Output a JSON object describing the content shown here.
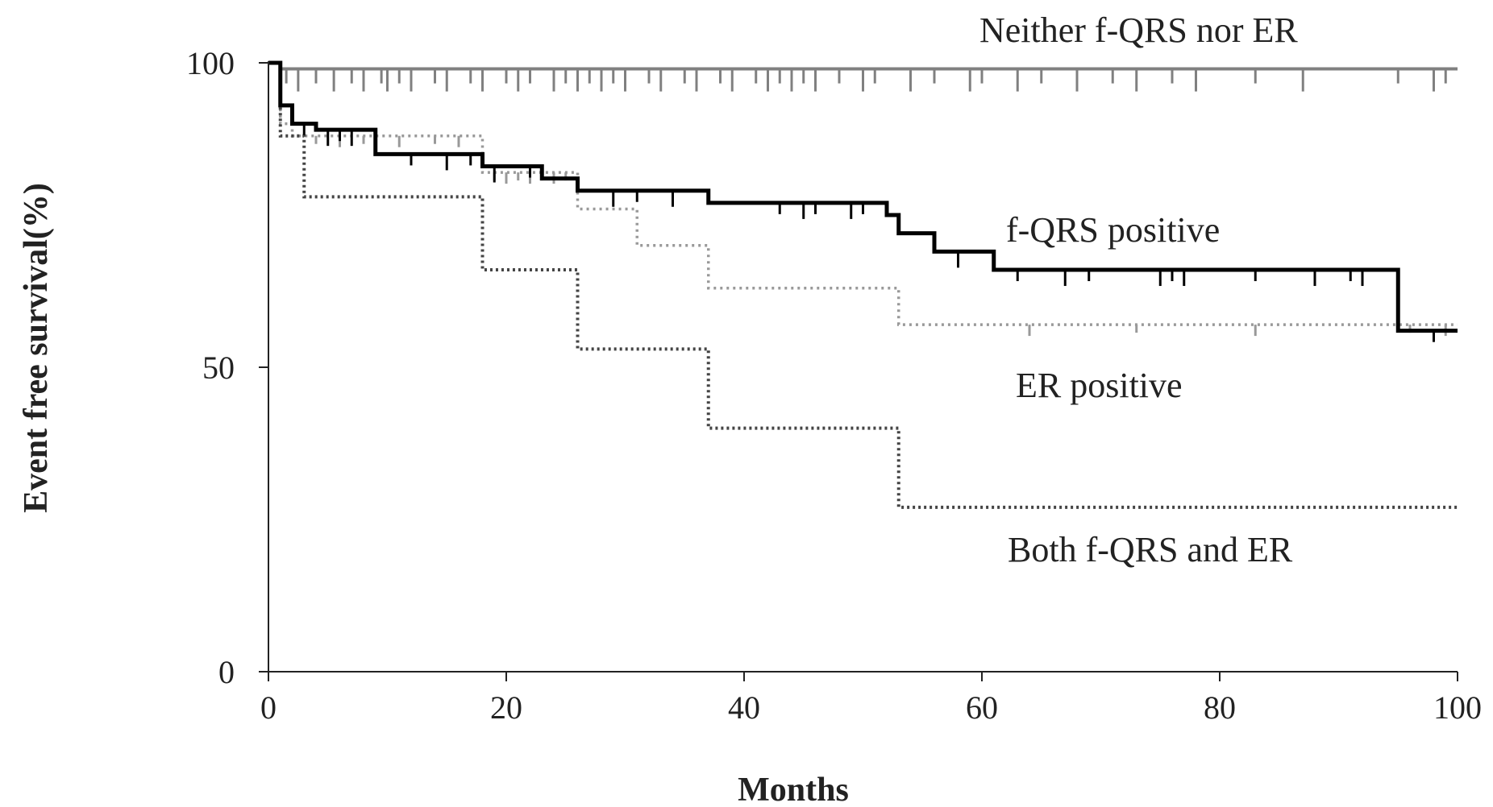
{
  "chart_data": {
    "type": "line",
    "subtype": "kaplan-meier step curves",
    "xlabel": "Months",
    "ylabel": "Event free survival(%)",
    "xlim": [
      0,
      100
    ],
    "ylim": [
      0,
      100
    ],
    "xticks": [
      0,
      20,
      40,
      60,
      80,
      100
    ],
    "yticks": [
      0,
      50,
      100
    ],
    "grid": false,
    "legend": "none (labels placed next to curves)",
    "series": [
      {
        "name": "Neither f-QRS nor ER",
        "color": "#808080",
        "style": "solid",
        "steps": [
          [
            0,
            100
          ],
          [
            1,
            99
          ],
          [
            100,
            99
          ]
        ],
        "censor_marks": [
          1.5,
          2.5,
          4,
          5.5,
          7,
          8,
          9.5,
          10,
          11,
          12,
          14,
          15,
          17,
          18,
          20,
          21,
          22,
          24,
          25,
          26,
          27,
          28,
          29,
          30,
          32,
          33,
          35,
          36,
          38,
          39,
          41,
          42,
          43,
          44,
          45,
          46,
          48,
          50,
          51,
          54,
          56,
          59,
          60,
          63,
          65,
          68,
          71,
          73,
          76,
          78,
          83,
          87,
          95,
          98,
          99
        ]
      },
      {
        "name": "f-QRS positive",
        "color": "#000000",
        "style": "solid",
        "steps": [
          [
            0,
            100
          ],
          [
            1,
            93
          ],
          [
            2,
            90
          ],
          [
            4,
            89
          ],
          [
            9,
            85
          ],
          [
            18,
            83
          ],
          [
            23,
            81
          ],
          [
            26,
            79
          ],
          [
            37,
            77
          ],
          [
            52,
            75
          ],
          [
            53,
            72
          ],
          [
            56,
            69
          ],
          [
            61,
            66
          ],
          [
            95,
            56
          ],
          [
            100,
            56
          ]
        ],
        "censor_marks": [
          3,
          5,
          6,
          7,
          12,
          15,
          17,
          19,
          22,
          29,
          31,
          34,
          43,
          45,
          46,
          49,
          50,
          58,
          63,
          67,
          69,
          75,
          76,
          77,
          83,
          88,
          91,
          92,
          98
        ]
      },
      {
        "name": "ER positive",
        "color": "#999999",
        "style": "dotted",
        "steps": [
          [
            0,
            100
          ],
          [
            1,
            90
          ],
          [
            2,
            88
          ],
          [
            18,
            82
          ],
          [
            26,
            76
          ],
          [
            31,
            70
          ],
          [
            37,
            63
          ],
          [
            53,
            57
          ],
          [
            100,
            57
          ]
        ],
        "censor_marks": [
          4,
          6,
          8,
          11,
          14,
          16,
          19,
          20,
          21,
          22,
          23,
          24,
          25,
          64,
          73,
          83,
          96,
          99
        ]
      },
      {
        "name": "Both f-QRS and ER",
        "color": "#444444",
        "style": "dotted",
        "steps": [
          [
            0,
            100
          ],
          [
            1,
            88
          ],
          [
            3,
            78
          ],
          [
            18,
            66
          ],
          [
            26,
            53
          ],
          [
            37,
            40
          ],
          [
            53,
            27
          ],
          [
            100,
            27
          ]
        ],
        "censor_marks": []
      }
    ]
  }
}
